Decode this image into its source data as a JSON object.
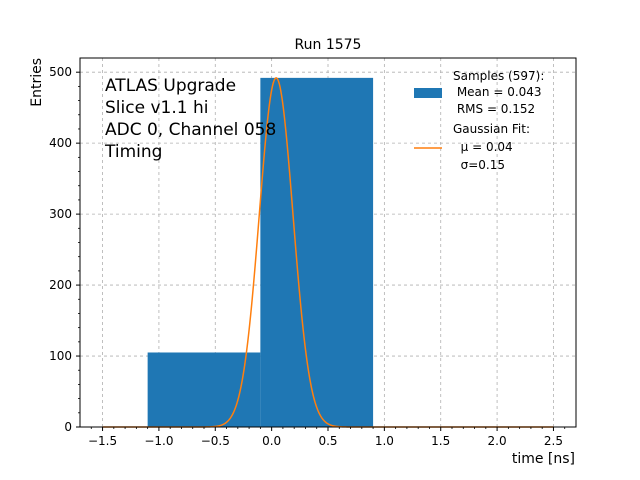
{
  "chart_data": {
    "type": "bar",
    "title": "Run 1575",
    "xlabel": "time [ns]",
    "ylabel": "Entries",
    "xlim": [
      -1.7,
      2.7
    ],
    "ylim": [
      0,
      520
    ],
    "xticks": [
      -1.5,
      -1.0,
      -0.5,
      0.0,
      0.5,
      1.0,
      1.5,
      2.0,
      2.5
    ],
    "xtick_labels": [
      "−1.5",
      "−1.0",
      "−0.5",
      "0.0",
      "0.5",
      "1.0",
      "1.5",
      "2.0",
      "2.5"
    ],
    "yticks": [
      0,
      100,
      200,
      300,
      400,
      500
    ],
    "ytick_labels": [
      "0",
      "100",
      "200",
      "300",
      "400",
      "500"
    ],
    "grid": true,
    "histogram": {
      "bins": [
        {
          "x0": -1.1,
          "x1": -0.1,
          "value": 105
        },
        {
          "x0": -0.1,
          "x1": 0.9,
          "value": 492
        }
      ],
      "color": "#1f77b4"
    },
    "fit": {
      "type": "gaussian",
      "mu": 0.04,
      "sigma": 0.15,
      "amplitude": 492,
      "x_range": [
        -1.5,
        2.5
      ],
      "color": "#ff7f0e"
    },
    "legend": {
      "placement": "top-right",
      "entries": [
        {
          "kind": "patch",
          "lines": [
            "Samples (597):",
            " Mean = 0.043",
            " RMS = 0.152"
          ],
          "color": "#1f77b4"
        },
        {
          "kind": "line",
          "lines": [
            "Gaussian Fit:",
            "  μ = 0.04",
            "  σ=0.15"
          ],
          "color": "#ff7f0e"
        }
      ]
    },
    "annotation": [
      "ATLAS Upgrade",
      "Slice v1.1 hi",
      "ADC 0, Channel 058",
      "Timing"
    ]
  }
}
